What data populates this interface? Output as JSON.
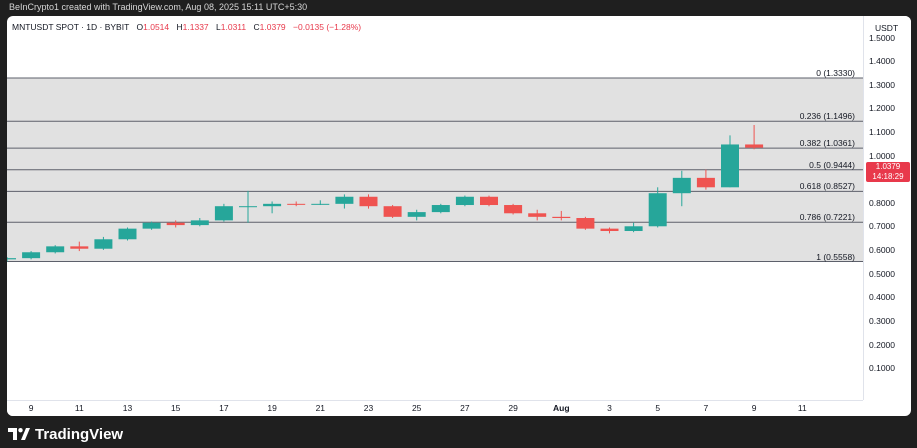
{
  "caption": "BeInCrypto1 created with TradingView.com, Aug 08, 2025 15:11 UTC+5:30",
  "legend": {
    "symbol": "MNTUSDT SPOT · 1D · BYBIT",
    "open_label": "O",
    "open": "1.0514",
    "high_label": "H",
    "high": "1.1337",
    "low_label": "L",
    "low": "1.0311",
    "close_label": "C",
    "close": "1.0379",
    "change": "−0.0135 (−1.28%)"
  },
  "currency": "USDT",
  "price_axis": [
    "1.5000",
    "1.4000",
    "1.3000",
    "1.2000",
    "1.1000",
    "1.0000",
    "0.9000",
    "0.8000",
    "0.7000",
    "0.6000",
    "0.5000",
    "0.4000",
    "0.3000",
    "0.2000",
    "0.1000"
  ],
  "fib_levels": [
    {
      "label": "0 (1.3330)",
      "value": 1.333
    },
    {
      "label": "0.236 (1.1496)",
      "value": 1.1496
    },
    {
      "label": "0.382 (1.0361)",
      "value": 1.0361
    },
    {
      "label": "0.5 (0.9444)",
      "value": 0.9444
    },
    {
      "label": "0.618 (0.8527)",
      "value": 0.8527
    },
    {
      "label": "0.786 (0.7221)",
      "value": 0.7221
    },
    {
      "label": "1 (0.5558)",
      "value": 0.5558
    }
  ],
  "last_price": {
    "price": "1.0379",
    "countdown": "14:18:29"
  },
  "time_axis": [
    {
      "label": "9",
      "bold": false
    },
    {
      "label": "11",
      "bold": false
    },
    {
      "label": "13",
      "bold": false
    },
    {
      "label": "15",
      "bold": false
    },
    {
      "label": "17",
      "bold": false
    },
    {
      "label": "19",
      "bold": false
    },
    {
      "label": "21",
      "bold": false
    },
    {
      "label": "23",
      "bold": false
    },
    {
      "label": "25",
      "bold": false
    },
    {
      "label": "27",
      "bold": false
    },
    {
      "label": "29",
      "bold": false
    },
    {
      "label": "Aug",
      "bold": true
    },
    {
      "label": "3",
      "bold": false
    },
    {
      "label": "5",
      "bold": false
    },
    {
      "label": "7",
      "bold": false
    },
    {
      "label": "9",
      "bold": false
    },
    {
      "label": "11",
      "bold": false
    }
  ],
  "brand": {
    "name": "TradingView"
  },
  "colors": {
    "up": "#26a69a",
    "down": "#ef5350",
    "fib_zone": "#e1e1e1",
    "fib_line": "#5d606b",
    "badge": "#e8394b"
  },
  "chart_data": {
    "type": "candlestick",
    "ylim": [
      0.0,
      1.6
    ],
    "candles": [
      {
        "date": "Jul 08",
        "o": 0.565,
        "h": 0.575,
        "l": 0.555,
        "c": 0.57
      },
      {
        "date": "Jul 09",
        "o": 0.57,
        "h": 0.6,
        "l": 0.565,
        "c": 0.595
      },
      {
        "date": "Jul 10",
        "o": 0.595,
        "h": 0.625,
        "l": 0.59,
        "c": 0.62
      },
      {
        "date": "Jul 11",
        "o": 0.62,
        "h": 0.64,
        "l": 0.6,
        "c": 0.61
      },
      {
        "date": "Jul 12",
        "o": 0.61,
        "h": 0.66,
        "l": 0.605,
        "c": 0.65
      },
      {
        "date": "Jul 13",
        "o": 0.65,
        "h": 0.7,
        "l": 0.645,
        "c": 0.695
      },
      {
        "date": "Jul 14",
        "o": 0.695,
        "h": 0.725,
        "l": 0.69,
        "c": 0.72
      },
      {
        "date": "Jul 15",
        "o": 0.72,
        "h": 0.73,
        "l": 0.7,
        "c": 0.71
      },
      {
        "date": "Jul 16",
        "o": 0.71,
        "h": 0.74,
        "l": 0.705,
        "c": 0.73
      },
      {
        "date": "Jul 17",
        "o": 0.73,
        "h": 0.8,
        "l": 0.725,
        "c": 0.79
      },
      {
        "date": "Jul 18",
        "o": 0.79,
        "h": 0.855,
        "l": 0.72,
        "c": 0.79
      },
      {
        "date": "Jul 19",
        "o": 0.79,
        "h": 0.81,
        "l": 0.76,
        "c": 0.8
      },
      {
        "date": "Jul 20",
        "o": 0.8,
        "h": 0.81,
        "l": 0.79,
        "c": 0.798
      },
      {
        "date": "Jul 21",
        "o": 0.798,
        "h": 0.815,
        "l": 0.795,
        "c": 0.8
      },
      {
        "date": "Jul 22",
        "o": 0.8,
        "h": 0.84,
        "l": 0.78,
        "c": 0.83
      },
      {
        "date": "Jul 23",
        "o": 0.83,
        "h": 0.84,
        "l": 0.78,
        "c": 0.79
      },
      {
        "date": "Jul 24",
        "o": 0.79,
        "h": 0.795,
        "l": 0.74,
        "c": 0.745
      },
      {
        "date": "Jul 25",
        "o": 0.745,
        "h": 0.775,
        "l": 0.73,
        "c": 0.765
      },
      {
        "date": "Jul 26",
        "o": 0.765,
        "h": 0.8,
        "l": 0.76,
        "c": 0.795
      },
      {
        "date": "Jul 27",
        "o": 0.795,
        "h": 0.835,
        "l": 0.79,
        "c": 0.83
      },
      {
        "date": "Jul 28",
        "o": 0.83,
        "h": 0.835,
        "l": 0.79,
        "c": 0.795
      },
      {
        "date": "Jul 29",
        "o": 0.795,
        "h": 0.8,
        "l": 0.755,
        "c": 0.76
      },
      {
        "date": "Jul 30",
        "o": 0.76,
        "h": 0.775,
        "l": 0.73,
        "c": 0.745
      },
      {
        "date": "Jul 31",
        "o": 0.745,
        "h": 0.77,
        "l": 0.73,
        "c": 0.74
      },
      {
        "date": "Aug 01",
        "o": 0.74,
        "h": 0.745,
        "l": 0.69,
        "c": 0.695
      },
      {
        "date": "Aug 02",
        "o": 0.695,
        "h": 0.7,
        "l": 0.675,
        "c": 0.685
      },
      {
        "date": "Aug 03",
        "o": 0.685,
        "h": 0.72,
        "l": 0.68,
        "c": 0.705
      },
      {
        "date": "Aug 04",
        "o": 0.705,
        "h": 0.87,
        "l": 0.7,
        "c": 0.845
      },
      {
        "date": "Aug 05",
        "o": 0.845,
        "h": 0.94,
        "l": 0.79,
        "c": 0.91
      },
      {
        "date": "Aug 06",
        "o": 0.91,
        "h": 0.945,
        "l": 0.86,
        "c": 0.87
      },
      {
        "date": "Aug 07",
        "o": 0.87,
        "h": 1.09,
        "l": 0.87,
        "c": 1.0514
      },
      {
        "date": "Aug 08",
        "o": 1.0514,
        "h": 1.1337,
        "l": 1.0311,
        "c": 1.0379
      }
    ]
  }
}
